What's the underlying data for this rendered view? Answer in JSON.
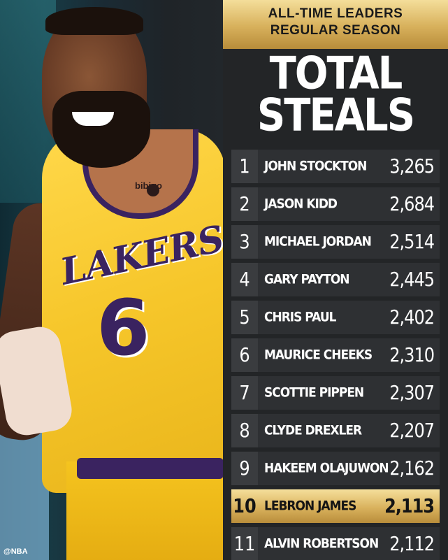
{
  "header": {
    "line1": "ALL-TIME LEADERS",
    "line2": "REGULAR SEASON"
  },
  "title": {
    "line1": "TOTAL",
    "line2": "STEALS"
  },
  "jersey": {
    "team": "LAKERS",
    "number": "6",
    "sponsor": "bibigo"
  },
  "credit": "@NBA",
  "colors": {
    "gold": "#d7b05b",
    "panel": "#232527",
    "row": "#2e3033",
    "lakers_purple": "#3a2360",
    "lakers_gold": "#f6c62a"
  },
  "leaders": [
    {
      "rank": "1",
      "name": "JOHN STOCKTON",
      "value": "3,265"
    },
    {
      "rank": "2",
      "name": "JASON KIDD",
      "value": "2,684"
    },
    {
      "rank": "3",
      "name": "MICHAEL JORDAN",
      "value": "2,514"
    },
    {
      "rank": "4",
      "name": "GARY PAYTON",
      "value": "2,445"
    },
    {
      "rank": "5",
      "name": "CHRIS PAUL",
      "value": "2,402"
    },
    {
      "rank": "6",
      "name": "MAURICE CHEEKS",
      "value": "2,310"
    },
    {
      "rank": "7",
      "name": "SCOTTIE PIPPEN",
      "value": "2,307"
    },
    {
      "rank": "8",
      "name": "CLYDE DREXLER",
      "value": "2,207"
    },
    {
      "rank": "9",
      "name": "HAKEEM OLAJUWON",
      "value": "2,162"
    },
    {
      "rank": "10",
      "name": "LEBRON JAMES",
      "value": "2,113",
      "highlight": true
    },
    {
      "rank": "11",
      "name": "ALVIN ROBERTSON",
      "value": "2,112"
    }
  ]
}
